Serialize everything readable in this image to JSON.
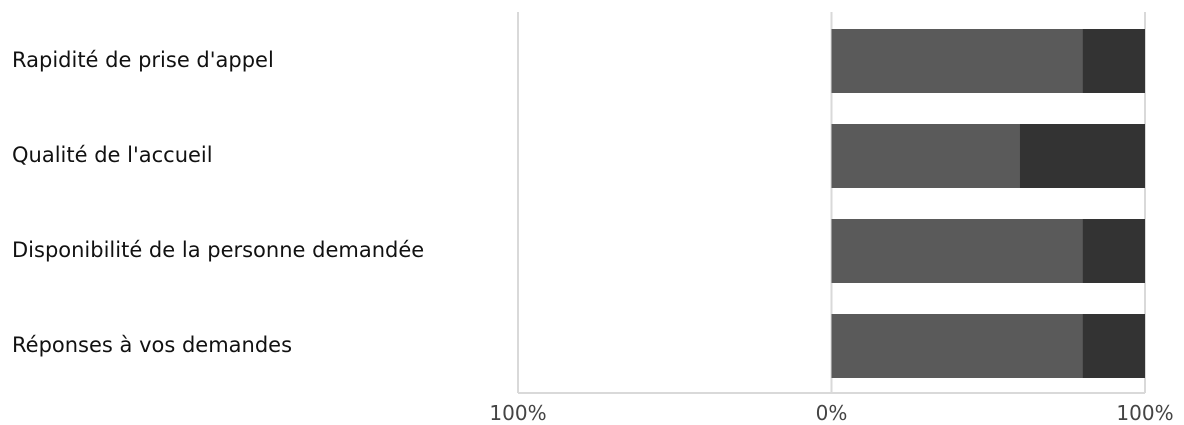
{
  "chart_data": {
    "type": "bar",
    "orientation": "horizontal",
    "stacked": true,
    "diverging": true,
    "categories": [
      "Rapidité de prise d'appel",
      "Qualité de l'accueil",
      "Disponibilité de la personne demandée",
      "Réponses à vos demandes"
    ],
    "series": [
      {
        "values": [
          80,
          60,
          80,
          80
        ],
        "color": "#5a5a5a"
      },
      {
        "values": [
          20,
          40,
          20,
          20
        ],
        "color": "#333333"
      }
    ],
    "xlim": [
      -100,
      100
    ],
    "x_ticks": [
      -100,
      0,
      100
    ],
    "x_tick_labels": [
      "100%",
      "0%",
      "100%"
    ],
    "grid": true,
    "legend": "none",
    "gridline_color": "#d9d9d9"
  }
}
